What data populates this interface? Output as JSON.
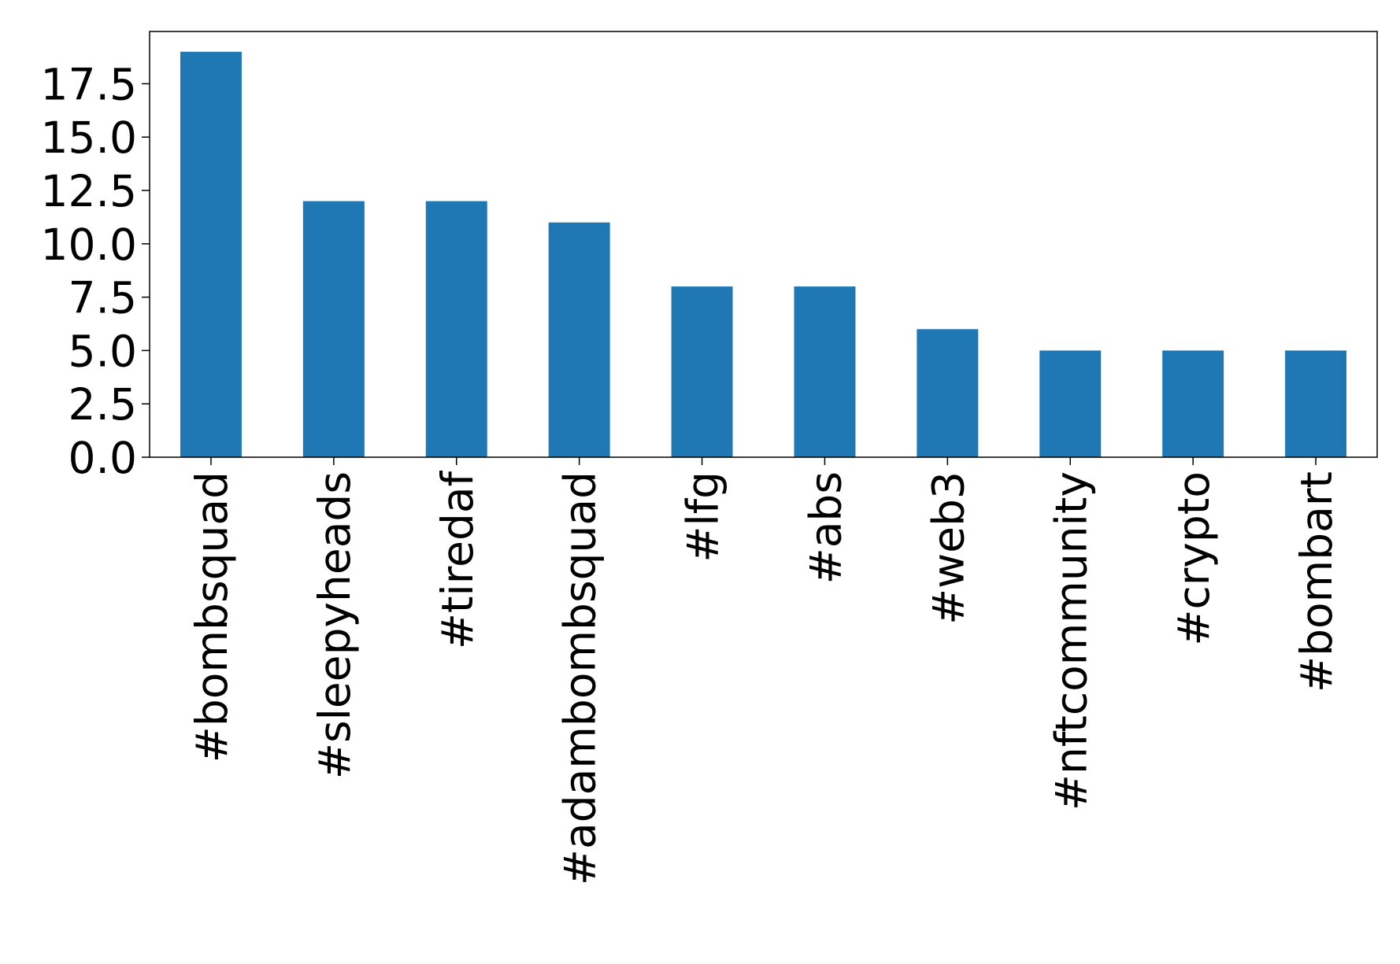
{
  "chart_data": {
    "type": "bar",
    "categories": [
      "#bombsquad",
      "#sleepyheads",
      "#tiredaf",
      "#adambombsquad",
      "#lfg",
      "#abs",
      "#web3",
      "#nftcommunity",
      "#crypto",
      "#bombart"
    ],
    "values": [
      19,
      12,
      12,
      11,
      8,
      8,
      6,
      5,
      5,
      5
    ],
    "color": "#1f77b4",
    "ylim": [
      0,
      19.95
    ],
    "yticks": [
      {
        "value": 0,
        "label": "0.0"
      },
      2.5,
      {
        "value": 5,
        "label": "5.0"
      },
      7.5,
      {
        "value": 10,
        "label": "10.0"
      },
      12.5,
      {
        "value": 15,
        "label": "15.0"
      },
      17.5
    ]
  }
}
